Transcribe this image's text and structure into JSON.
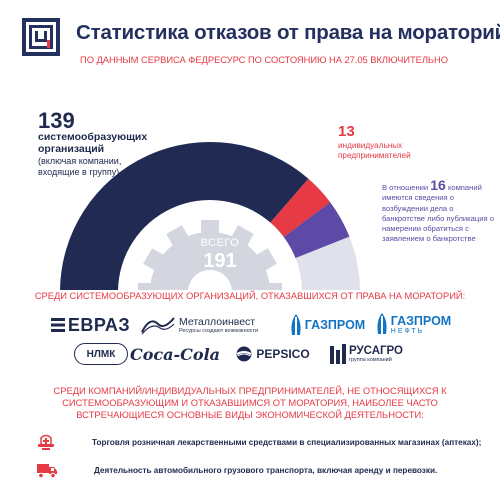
{
  "header": {
    "title": "Статистика отказов от права на мораторий",
    "subtitle": "ПО ДАННЫМ СЕРВИСА ФЕДРЕСУРС ПО СОСТОЯНИЮ НА 27.05 ВКЛЮЧИТЕЛЬНО",
    "logo_icon": "fedresurs-logo"
  },
  "chart_data": {
    "type": "pie",
    "shape": "half-donut",
    "total": 191,
    "total_label": "ВСЕГО",
    "segments": [
      {
        "value": 139,
        "label": "системообразующих организаций",
        "note": "(включая компании, входящие в группу)",
        "color": "#202a52"
      },
      {
        "value": 13,
        "label": "индивидуальных предпринимателей",
        "color": "#e63a44"
      },
      {
        "value": 16,
        "prefix": "В отношении",
        "label": "компаний имеются сведения о возбуждении дела о банкротстве либо публикация о намерении обратиться с заявлением о банкротстве",
        "color": "#5c4aa6"
      }
    ],
    "colors": {
      "background_arc": "#dfe2ea",
      "gear": "#d3d6df"
    }
  },
  "section1": {
    "title": "СРЕДИ СИСТЕМООБРАЗУЮЩИХ ОРГАНИЗАЦИЙ, ОТКАЗАВШИХСЯ ОТ ПРАВА НА МОРАТОРИЙ:",
    "logos": {
      "evraz": "ЕВРАЗ",
      "metalloinvest": "Металлоинвест",
      "metalloinvest_tagline": "Ресурсы создают возможности",
      "gazprom": "ГАЗПРОМ",
      "gazpromneft_top": "ГАЗПРОМ",
      "gazpromneft_bottom": "НЕФТЬ",
      "nlmk": "НЛМК",
      "cocacola": "Coca-Cola",
      "pepsico": "PEPSICO",
      "rusagro": "РУСАГРО",
      "rusagro_tagline": "группа компаний"
    }
  },
  "section2": {
    "title": "СРЕДИ КОМПАНИЙ/ИНДИВИДУАЛЬНЫХ ПРЕДПРИНИМАТЕЛЕЙ, НЕ ОТНОСЯЩИХСЯ К СИСТЕМООБРАЗУЮЩИМ И ОТКАЗАВШИМСЯ ОТ МОРАТОРИЯ, НАИБОЛЕЕ ЧАСТО ВСТРЕЧАЮЩИЕСЯ ОСНОВНЫЕ ВИДЫ ЭКОНОМИЧЕСКОЙ ДЕЯТЕЛЬНОСТИ:",
    "activities": [
      {
        "icon": "pharmacy-icon",
        "text": "Торговля розничная лекарственными средствами в специализированных магазинах (аптеках);"
      },
      {
        "icon": "truck-icon",
        "text": "Деятельность автомобильного грузового транспорта, включая аренду и перевозки."
      }
    ]
  }
}
